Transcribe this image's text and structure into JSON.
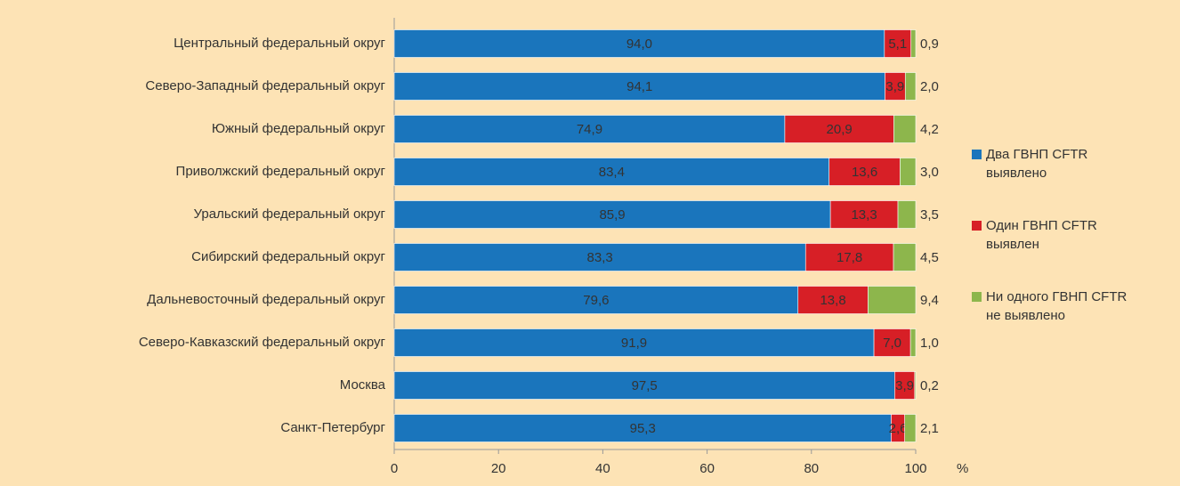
{
  "chart_data": {
    "type": "bar",
    "orientation": "horizontal",
    "stacking": "percent",
    "categories": [
      "Центральный федеральный округ",
      "Северо-Западный федеральный округ",
      "Южный федеральный округ",
      "Приволжский федеральный округ",
      "Уральский федеральный округ",
      "Сибирский федеральный округ",
      "Дальневосточный федеральный округ",
      "Северо-Кавказский федеральный округ",
      "Москва",
      "Санкт-Петербург"
    ],
    "series": [
      {
        "name": "Два ГВНП CFTR выявлено",
        "color": "#1a75bc",
        "values": [
          94.0,
          94.1,
          74.9,
          83.4,
          85.9,
          83.3,
          79.6,
          91.9,
          97.5,
          95.3
        ],
        "value_labels": [
          "94,0",
          "94,1",
          "74,9",
          "83,4",
          "85,9",
          "83,3",
          "79,6",
          "91,9",
          "97,5",
          "95,3"
        ]
      },
      {
        "name": "Один ГВНП CFTR выявлен",
        "color": "#d71f26",
        "values": [
          5.1,
          3.9,
          20.9,
          13.6,
          13.3,
          17.8,
          13.8,
          7.0,
          3.9,
          2.6
        ],
        "value_labels": [
          "5,1",
          "3,9",
          "20,9",
          "13,6",
          "13,3",
          "17,8",
          "13,8",
          "7,0",
          "3,9",
          "2,6"
        ]
      },
      {
        "name": "Ни одного ГВНП CFTR не выявлено",
        "color": "#8db64c",
        "values": [
          0.9,
          2.0,
          4.2,
          3.0,
          3.5,
          4.5,
          9.4,
          1.0,
          0.2,
          2.1
        ],
        "value_labels": [
          "0,9",
          "2,0",
          "4,2",
          "3,0",
          "3,5",
          "4,5",
          "9,4",
          "1,0",
          "0,2",
          "2,1"
        ]
      }
    ],
    "xlim": [
      0,
      100
    ],
    "xticks": [
      0,
      20,
      40,
      60,
      80,
      100
    ],
    "x_unit": "%",
    "legend": "right"
  }
}
